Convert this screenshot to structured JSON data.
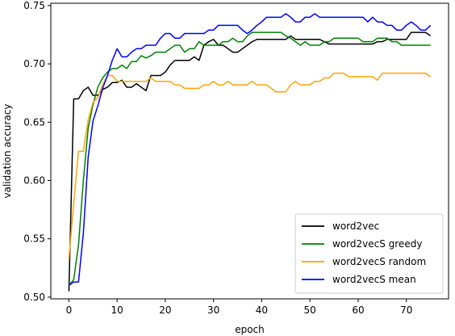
{
  "chart_data": {
    "type": "line",
    "title": "",
    "xlabel": "epoch",
    "ylabel": "validation accuracy",
    "xlim": [
      -3.75,
      78.75
    ],
    "ylim": [
      0.4985,
      0.752
    ],
    "xticks": [
      0,
      10,
      20,
      30,
      40,
      50,
      60,
      70
    ],
    "yticks": [
      0.5,
      0.55,
      0.6,
      0.65,
      0.7,
      0.75
    ],
    "ytick_labels": [
      "0.50",
      "0.55",
      "0.60",
      "0.65",
      "0.70",
      "0.75"
    ],
    "grid": false,
    "legend_position": "lower-right",
    "x": [
      0,
      1,
      2,
      3,
      4,
      5,
      6,
      7,
      8,
      9,
      10,
      11,
      12,
      13,
      14,
      15,
      16,
      17,
      18,
      19,
      20,
      21,
      22,
      23,
      24,
      25,
      26,
      27,
      28,
      29,
      30,
      31,
      32,
      33,
      34,
      35,
      36,
      37,
      38,
      39,
      40,
      41,
      42,
      43,
      44,
      45,
      46,
      47,
      48,
      49,
      50,
      51,
      52,
      53,
      54,
      55,
      56,
      57,
      58,
      59,
      60,
      61,
      62,
      63,
      64,
      65,
      66,
      67,
      68,
      69,
      70,
      71,
      72,
      73,
      74,
      75
    ],
    "series": [
      {
        "name": "word2vec",
        "color": "#000000",
        "values": [
          0.505,
          0.67,
          0.67,
          0.677,
          0.68,
          0.673,
          0.673,
          0.678,
          0.68,
          0.684,
          0.684,
          0.686,
          0.68,
          0.68,
          0.683,
          0.68,
          0.677,
          0.69,
          0.69,
          0.69,
          0.693,
          0.699,
          0.703,
          0.703,
          0.703,
          0.703,
          0.706,
          0.703,
          0.716,
          0.719,
          0.721,
          0.716,
          0.716,
          0.713,
          0.71,
          0.71,
          0.713,
          0.716,
          0.719,
          0.721,
          0.721,
          0.721,
          0.721,
          0.721,
          0.721,
          0.721,
          0.724,
          0.721,
          0.721,
          0.721,
          0.721,
          0.721,
          0.721,
          0.719,
          0.717,
          0.717,
          0.717,
          0.717,
          0.717,
          0.717,
          0.717,
          0.717,
          0.717,
          0.717,
          0.719,
          0.719,
          0.721,
          0.721,
          0.721,
          0.721,
          0.721,
          0.727,
          0.727,
          0.727,
          0.727,
          0.724
        ]
      },
      {
        "name": "word2vecS greedy",
        "color": "#008000",
        "values": [
          0.51,
          0.515,
          0.545,
          0.6,
          0.645,
          0.665,
          0.68,
          0.688,
          0.693,
          0.696,
          0.696,
          0.699,
          0.696,
          0.702,
          0.702,
          0.707,
          0.705,
          0.707,
          0.71,
          0.71,
          0.71,
          0.713,
          0.716,
          0.716,
          0.71,
          0.713,
          0.713,
          0.719,
          0.716,
          0.716,
          0.716,
          0.716,
          0.719,
          0.719,
          0.722,
          0.719,
          0.719,
          0.724,
          0.727,
          0.727,
          0.727,
          0.727,
          0.727,
          0.727,
          0.727,
          0.724,
          0.722,
          0.719,
          0.716,
          0.719,
          0.716,
          0.716,
          0.716,
          0.719,
          0.719,
          0.722,
          0.722,
          0.722,
          0.722,
          0.722,
          0.722,
          0.719,
          0.719,
          0.719,
          0.722,
          0.722,
          0.722,
          0.719,
          0.719,
          0.716,
          0.716,
          0.716,
          0.716,
          0.716,
          0.716,
          0.716
        ]
      },
      {
        "name": "word2vecS random",
        "color": "#ffa500",
        "values": [
          0.533,
          0.58,
          0.625,
          0.625,
          0.652,
          0.667,
          0.671,
          0.682,
          0.69,
          0.69,
          0.685,
          0.685,
          0.685,
          0.685,
          0.685,
          0.685,
          0.685,
          0.688,
          0.685,
          0.685,
          0.685,
          0.685,
          0.682,
          0.682,
          0.679,
          0.679,
          0.679,
          0.679,
          0.682,
          0.682,
          0.685,
          0.682,
          0.682,
          0.685,
          0.682,
          0.682,
          0.682,
          0.682,
          0.685,
          0.682,
          0.682,
          0.682,
          0.679,
          0.676,
          0.676,
          0.676,
          0.682,
          0.685,
          0.682,
          0.682,
          0.682,
          0.685,
          0.685,
          0.688,
          0.688,
          0.692,
          0.692,
          0.692,
          0.689,
          0.689,
          0.689,
          0.689,
          0.689,
          0.689,
          0.686,
          0.692,
          0.692,
          0.692,
          0.692,
          0.692,
          0.692,
          0.692,
          0.692,
          0.692,
          0.692,
          0.689
        ]
      },
      {
        "name": "word2vecS mean",
        "color": "#0000ff",
        "values": [
          0.51,
          0.513,
          0.513,
          0.555,
          0.62,
          0.651,
          0.664,
          0.679,
          0.69,
          0.703,
          0.713,
          0.706,
          0.706,
          0.71,
          0.713,
          0.713,
          0.716,
          0.716,
          0.716,
          0.722,
          0.726,
          0.726,
          0.722,
          0.722,
          0.726,
          0.726,
          0.726,
          0.726,
          0.726,
          0.729,
          0.729,
          0.733,
          0.733,
          0.733,
          0.733,
          0.733,
          0.729,
          0.726,
          0.729,
          0.733,
          0.736,
          0.74,
          0.74,
          0.74,
          0.74,
          0.743,
          0.74,
          0.736,
          0.736,
          0.74,
          0.74,
          0.743,
          0.74,
          0.74,
          0.74,
          0.74,
          0.74,
          0.74,
          0.74,
          0.74,
          0.74,
          0.74,
          0.736,
          0.74,
          0.736,
          0.736,
          0.733,
          0.733,
          0.729,
          0.729,
          0.733,
          0.736,
          0.733,
          0.729,
          0.729,
          0.733
        ]
      }
    ]
  }
}
